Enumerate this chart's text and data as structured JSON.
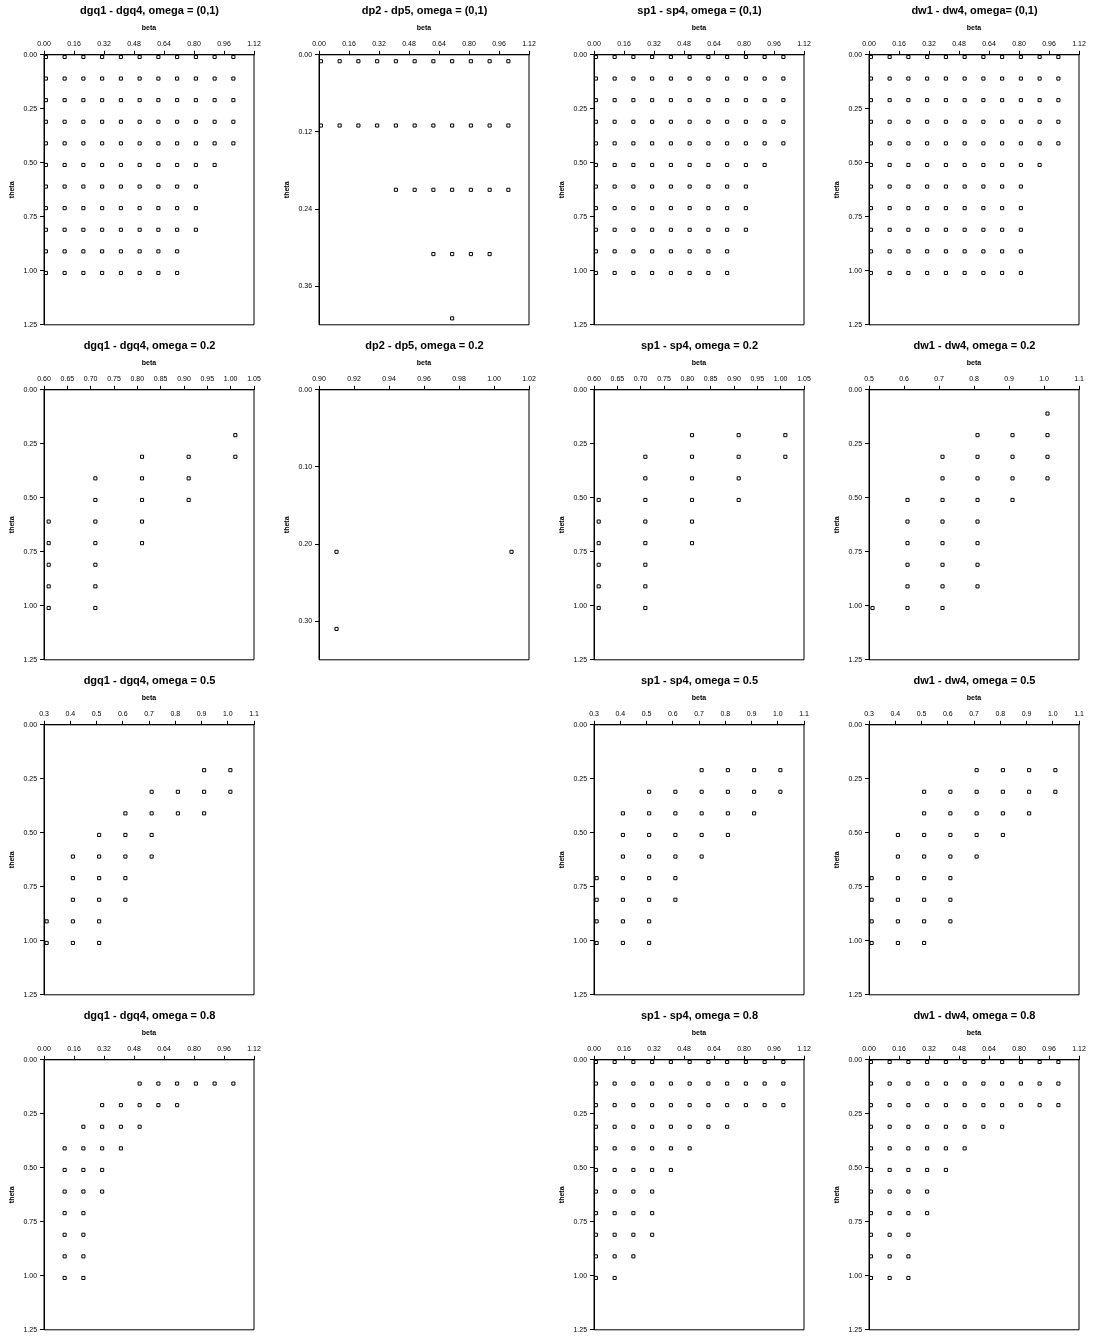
{
  "chart_data": [
    {
      "type": "scatter",
      "title": "dw1 - dw4, omega= (0,1)",
      "xlabel": "beta",
      "ylabel": "theta",
      "ylim": [
        1.25,
        0
      ],
      "yticks": [
        {
          "value": 0,
          "label": "0.00"
        },
        0.25,
        {
          "value": 0.5,
          "label": "0.50"
        },
        0.75,
        {
          "value": 1,
          "label": "1.00"
        },
        1.25
      ],
      "xlim": [
        0,
        1.12
      ],
      "xticks": [
        {
          "value": 0,
          "label": "0.00"
        },
        0.16,
        0.32,
        0.48,
        0.64,
        {
          "value": 0.8,
          "label": "0.80"
        },
        0.96,
        1.12
      ],
      "marker": "square",
      "series": [
        {
          "color": "#000000",
          "values": [
            0.01,
            0.01,
            0.01,
            0.01,
            0.01,
            0.01,
            0.01,
            0.01,
            0.01,
            0.01,
            0.01,
            0.11,
            0.11,
            0.11,
            0.11,
            0.11,
            0.11,
            0.11,
            0.11,
            0.11,
            0.11,
            0.11,
            0.21,
            0.21,
            0.21,
            0.21,
            0.21,
            0.21,
            0.21,
            0.21,
            0.21,
            0.21,
            0.21,
            0.31,
            0.31,
            0.31,
            0.31,
            0.31,
            0.31,
            0.31,
            0.31,
            0.31,
            0.31,
            0.31,
            0.41,
            0.41,
            0.41,
            0.41,
            0.41,
            0.41,
            0.41,
            0.41,
            0.41,
            0.41,
            0.41,
            0.51,
            0.51,
            0.51,
            0.51,
            0.51,
            0.51,
            0.51,
            0.51,
            0.51,
            0.51,
            0.61,
            0.61,
            0.61,
            0.61,
            0.61,
            0.61,
            0.61,
            0.61,
            0.61,
            0.71,
            0.71,
            0.71,
            0.71,
            0.71,
            0.71,
            0.71,
            0.71,
            0.71,
            0.81,
            0.81,
            0.81,
            0.81,
            0.81,
            0.81,
            0.81,
            0.81,
            0.81,
            0.91,
            0.91,
            0.91,
            0.91,
            0.91,
            0.91,
            0.91,
            0.91,
            0.91,
            1.01,
            1.01,
            1.01,
            1.01,
            1.01,
            1.01,
            1.01,
            1.01,
            1.01
          ],
          "x": [
            0.01,
            0.11,
            0.21,
            0.31,
            0.41,
            0.51,
            0.61,
            0.71,
            0.81,
            0.91,
            1.01,
            0.01,
            0.11,
            0.21,
            0.31,
            0.41,
            0.51,
            0.61,
            0.71,
            0.81,
            0.91,
            1.01,
            0.01,
            0.11,
            0.21,
            0.31,
            0.41,
            0.51,
            0.61,
            0.71,
            0.81,
            0.91,
            1.01,
            0.01,
            0.11,
            0.21,
            0.31,
            0.41,
            0.51,
            0.61,
            0.71,
            0.81,
            0.91,
            1.01,
            0.01,
            0.11,
            0.21,
            0.31,
            0.41,
            0.51,
            0.61,
            0.71,
            0.81,
            0.91,
            1.01,
            0.01,
            0.11,
            0.21,
            0.31,
            0.41,
            0.51,
            0.61,
            0.71,
            0.81,
            0.91,
            0.01,
            0.11,
            0.21,
            0.31,
            0.41,
            0.51,
            0.61,
            0.71,
            0.81,
            0.01,
            0.11,
            0.21,
            0.31,
            0.41,
            0.51,
            0.61,
            0.71,
            0.81,
            0.01,
            0.11,
            0.21,
            0.31,
            0.41,
            0.51,
            0.61,
            0.71,
            0.81,
            0.01,
            0.11,
            0.21,
            0.31,
            0.41,
            0.51,
            0.61,
            0.71,
            0.81,
            0.01,
            0.11,
            0.21,
            0.31,
            0.41,
            0.51,
            0.61,
            0.71,
            0.81
          ]
        }
      ]
    },
    {
      "type": "scatter",
      "title": "dw1 - dw4, omega = 0.2",
      "xlabel": "beta",
      "ylabel": "theta",
      "ylim": [
        1.25,
        0
      ],
      "yticks": [
        {
          "value": 0,
          "label": "0.00"
        },
        0.25,
        {
          "value": 0.5,
          "label": "0.50"
        },
        0.75,
        {
          "value": 1,
          "label": "1.00"
        },
        1.25
      ],
      "xlim": [
        0.5,
        1.1
      ],
      "xticks": [
        0.5,
        0.6,
        0.7,
        0.8,
        0.9,
        {
          "value": 1,
          "label": "1.0"
        },
        1.1
      ],
      "marker": "square",
      "series": [
        {
          "color": "#000000",
          "values": [
            0.11,
            0.21,
            0.21,
            0.21,
            0.31,
            0.31,
            0.31,
            0.31,
            0.41,
            0.41,
            0.41,
            0.41,
            0.51,
            0.51,
            0.51,
            0.51,
            0.61,
            0.61,
            0.61,
            0.71,
            0.71,
            0.71,
            0.81,
            0.81,
            0.81,
            0.91,
            0.91,
            0.91,
            1.01,
            1.01,
            1.01
          ],
          "x": [
            1.01,
            0.81,
            0.91,
            1.01,
            0.71,
            0.81,
            0.91,
            1.01,
            0.71,
            0.81,
            0.91,
            1.01,
            0.61,
            0.71,
            0.81,
            0.91,
            0.61,
            0.71,
            0.81,
            0.61,
            0.71,
            0.81,
            0.61,
            0.71,
            0.81,
            0.61,
            0.71,
            0.81,
            0.51,
            0.61,
            0.71
          ]
        }
      ]
    },
    {
      "type": "scatter",
      "title": "dw1 - dw4, omega = 0.5",
      "xlabel": "beta",
      "ylabel": "theta",
      "ylim": [
        1.25,
        0
      ],
      "yticks": [
        {
          "value": 0,
          "label": "0.00"
        },
        0.25,
        {
          "value": 0.5,
          "label": "0.50"
        },
        0.75,
        {
          "value": 1,
          "label": "1.00"
        },
        1.25
      ],
      "xlim": [
        0.3,
        1.1
      ],
      "xticks": [
        0.3,
        0.4,
        0.5,
        0.6,
        0.7,
        0.8,
        0.9,
        {
          "value": 1,
          "label": "1.0"
        },
        1.1
      ],
      "marker": "square",
      "series": [
        {
          "color": "#000000",
          "values": [
            0.21,
            0.21,
            0.21,
            0.21,
            0.31,
            0.31,
            0.31,
            0.31,
            0.31,
            0.31,
            0.41,
            0.41,
            0.41,
            0.41,
            0.41,
            0.51,
            0.51,
            0.51,
            0.51,
            0.51,
            0.61,
            0.61,
            0.61,
            0.61,
            0.71,
            0.71,
            0.71,
            0.71,
            0.81,
            0.81,
            0.81,
            0.81,
            0.91,
            0.91,
            0.91,
            0.91,
            1.01,
            1.01,
            1.01
          ],
          "x": [
            0.71,
            0.81,
            0.91,
            1.01,
            0.51,
            0.61,
            0.71,
            0.81,
            0.91,
            1.01,
            0.51,
            0.61,
            0.71,
            0.81,
            0.91,
            0.41,
            0.51,
            0.61,
            0.71,
            0.81,
            0.41,
            0.51,
            0.61,
            0.71,
            0.31,
            0.41,
            0.51,
            0.61,
            0.31,
            0.41,
            0.51,
            0.61,
            0.31,
            0.41,
            0.51,
            0.61,
            0.31,
            0.41,
            0.51
          ]
        }
      ]
    },
    {
      "type": "scatter",
      "title": "dw1 - dw4, omega = 0.8",
      "xlabel": "beta",
      "ylabel": "theta",
      "ylim": [
        1.25,
        0
      ],
      "yticks": [
        {
          "value": 0,
          "label": "0.00"
        },
        0.25,
        {
          "value": 0.5,
          "label": "0.50"
        },
        0.75,
        {
          "value": 1,
          "label": "1.00"
        },
        1.25
      ],
      "xlim": [
        0,
        1.12
      ],
      "xticks": [
        {
          "value": 0,
          "label": "0.00"
        },
        0.16,
        0.32,
        0.48,
        0.64,
        {
          "value": 0.8,
          "label": "0.80"
        },
        0.96,
        1.12
      ],
      "marker": "square",
      "series": [
        {
          "color": "#000000",
          "values": [
            0.01,
            0.01,
            0.01,
            0.01,
            0.01,
            0.01,
            0.01,
            0.01,
            0.01,
            0.01,
            0.01,
            0.11,
            0.11,
            0.11,
            0.11,
            0.11,
            0.11,
            0.11,
            0.11,
            0.11,
            0.11,
            0.11,
            0.21,
            0.21,
            0.21,
            0.21,
            0.21,
            0.21,
            0.21,
            0.21,
            0.21,
            0.21,
            0.21,
            0.31,
            0.31,
            0.31,
            0.31,
            0.31,
            0.31,
            0.31,
            0.31,
            0.41,
            0.41,
            0.41,
            0.41,
            0.41,
            0.41,
            0.51,
            0.51,
            0.51,
            0.51,
            0.51,
            0.61,
            0.61,
            0.61,
            0.61,
            0.71,
            0.71,
            0.71,
            0.71,
            0.81,
            0.81,
            0.81,
            0.91,
            0.91,
            0.91,
            1.01,
            1.01,
            1.01
          ],
          "x": [
            0.01,
            0.11,
            0.21,
            0.31,
            0.41,
            0.51,
            0.61,
            0.71,
            0.81,
            0.91,
            1.01,
            0.01,
            0.11,
            0.21,
            0.31,
            0.41,
            0.51,
            0.61,
            0.71,
            0.81,
            0.91,
            1.01,
            0.01,
            0.11,
            0.21,
            0.31,
            0.41,
            0.51,
            0.61,
            0.71,
            0.81,
            0.91,
            1.01,
            0.01,
            0.11,
            0.21,
            0.31,
            0.41,
            0.51,
            0.61,
            0.71,
            0.01,
            0.11,
            0.21,
            0.31,
            0.41,
            0.51,
            0.01,
            0.11,
            0.21,
            0.31,
            0.41,
            0.01,
            0.11,
            0.21,
            0.31,
            0.01,
            0.11,
            0.21,
            0.31,
            0.01,
            0.11,
            0.21,
            0.01,
            0.11,
            0.21,
            0.01,
            0.11,
            0.21
          ]
        }
      ]
    },
    {
      "type": "scatter",
      "title": "sp1 - sp4, omega = (0,1)",
      "xlabel": "beta",
      "ylabel": "theta",
      "ylim": [
        1.25,
        0
      ],
      "yticks": [
        {
          "value": 0,
          "label": "0.00"
        },
        0.25,
        {
          "value": 0.5,
          "label": "0.50"
        },
        0.75,
        {
          "value": 1,
          "label": "1.00"
        },
        1.25
      ],
      "xlim": [
        0,
        1.12
      ],
      "xticks": [
        {
          "value": 0,
          "label": "0.00"
        },
        0.16,
        0.32,
        0.48,
        0.64,
        {
          "value": 0.8,
          "label": "0.80"
        },
        0.96,
        1.12
      ],
      "marker": "square",
      "series": [
        {
          "color": "#000000",
          "values": [
            0.01,
            0.01,
            0.01,
            0.01,
            0.01,
            0.01,
            0.01,
            0.01,
            0.01,
            0.01,
            0.01,
            0.11,
            0.11,
            0.11,
            0.11,
            0.11,
            0.11,
            0.11,
            0.11,
            0.11,
            0.11,
            0.11,
            0.21,
            0.21,
            0.21,
            0.21,
            0.21,
            0.21,
            0.21,
            0.21,
            0.21,
            0.21,
            0.21,
            0.31,
            0.31,
            0.31,
            0.31,
            0.31,
            0.31,
            0.31,
            0.31,
            0.31,
            0.31,
            0.31,
            0.41,
            0.41,
            0.41,
            0.41,
            0.41,
            0.41,
            0.41,
            0.41,
            0.41,
            0.41,
            0.41,
            0.51,
            0.51,
            0.51,
            0.51,
            0.51,
            0.51,
            0.51,
            0.51,
            0.51,
            0.51,
            0.61,
            0.61,
            0.61,
            0.61,
            0.61,
            0.61,
            0.61,
            0.61,
            0.61,
            0.71,
            0.71,
            0.71,
            0.71,
            0.71,
            0.71,
            0.71,
            0.71,
            0.71,
            0.81,
            0.81,
            0.81,
            0.81,
            0.81,
            0.81,
            0.81,
            0.81,
            0.81,
            0.91,
            0.91,
            0.91,
            0.91,
            0.91,
            0.91,
            0.91,
            0.91,
            1.01,
            1.01,
            1.01,
            1.01,
            1.01,
            1.01,
            1.01,
            1.01
          ],
          "x": [
            0.01,
            0.11,
            0.21,
            0.31,
            0.41,
            0.51,
            0.61,
            0.71,
            0.81,
            0.91,
            1.01,
            0.01,
            0.11,
            0.21,
            0.31,
            0.41,
            0.51,
            0.61,
            0.71,
            0.81,
            0.91,
            1.01,
            0.01,
            0.11,
            0.21,
            0.31,
            0.41,
            0.51,
            0.61,
            0.71,
            0.81,
            0.91,
            1.01,
            0.01,
            0.11,
            0.21,
            0.31,
            0.41,
            0.51,
            0.61,
            0.71,
            0.81,
            0.91,
            1.01,
            0.01,
            0.11,
            0.21,
            0.31,
            0.41,
            0.51,
            0.61,
            0.71,
            0.81,
            0.91,
            1.01,
            0.01,
            0.11,
            0.21,
            0.31,
            0.41,
            0.51,
            0.61,
            0.71,
            0.81,
            0.91,
            0.01,
            0.11,
            0.21,
            0.31,
            0.41,
            0.51,
            0.61,
            0.71,
            0.81,
            0.01,
            0.11,
            0.21,
            0.31,
            0.41,
            0.51,
            0.61,
            0.71,
            0.81,
            0.01,
            0.11,
            0.21,
            0.31,
            0.41,
            0.51,
            0.61,
            0.71,
            0.81,
            0.01,
            0.11,
            0.21,
            0.31,
            0.41,
            0.51,
            0.61,
            0.71,
            0.01,
            0.11,
            0.21,
            0.31,
            0.41,
            0.51,
            0.61,
            0.71
          ]
        }
      ]
    },
    {
      "type": "scatter",
      "title": "sp1 - sp4, omega = 0.2",
      "xlabel": "beta",
      "ylabel": "theta",
      "ylim": [
        1.25,
        0
      ],
      "yticks": [
        {
          "value": 0,
          "label": "0.00"
        },
        0.25,
        {
          "value": 0.5,
          "label": "0.50"
        },
        0.75,
        {
          "value": 1,
          "label": "1.00"
        },
        1.25
      ],
      "xlim": [
        0.6,
        1.05
      ],
      "xticks": [
        {
          "value": 0.6,
          "label": "0.60"
        },
        0.65,
        {
          "value": 0.7,
          "label": "0.70"
        },
        0.75,
        {
          "value": 0.8,
          "label": "0.80"
        },
        0.85,
        {
          "value": 0.9,
          "label": "0.90"
        },
        0.95,
        {
          "value": 1,
          "label": "1.00"
        },
        1.05
      ],
      "marker": "square",
      "series": [
        {
          "color": "#000000",
          "values": [
            0.21,
            0.21,
            0.21,
            0.31,
            0.31,
            0.31,
            0.31,
            0.41,
            0.41,
            0.41,
            0.51,
            0.51,
            0.51,
            0.51,
            0.61,
            0.61,
            0.61,
            0.71,
            0.71,
            0.71,
            0.81,
            0.81,
            0.91,
            0.91,
            1.01,
            1.01
          ],
          "x": [
            0.81,
            0.91,
            1.01,
            0.71,
            0.81,
            0.91,
            1.01,
            0.71,
            0.81,
            0.91,
            0.61,
            0.71,
            0.81,
            0.91,
            0.61,
            0.71,
            0.81,
            0.61,
            0.71,
            0.81,
            0.61,
            0.71,
            0.61,
            0.71,
            0.61,
            0.71
          ]
        }
      ]
    },
    {
      "type": "scatter",
      "title": "sp1 - sp4, omega = 0.5",
      "xlabel": "beta",
      "ylabel": "theta",
      "ylim": [
        1.25,
        0
      ],
      "yticks": [
        {
          "value": 0,
          "label": "0.00"
        },
        0.25,
        {
          "value": 0.5,
          "label": "0.50"
        },
        0.75,
        {
          "value": 1,
          "label": "1.00"
        },
        1.25
      ],
      "xlim": [
        0.3,
        1.1
      ],
      "xticks": [
        0.3,
        0.4,
        0.5,
        0.6,
        0.7,
        0.8,
        0.9,
        {
          "value": 1,
          "label": "1.0"
        },
        1.1
      ],
      "marker": "square",
      "series": [
        {
          "color": "#000000",
          "values": [
            0.21,
            0.21,
            0.21,
            0.21,
            0.31,
            0.31,
            0.31,
            0.31,
            0.31,
            0.31,
            0.41,
            0.41,
            0.41,
            0.41,
            0.41,
            0.41,
            0.51,
            0.51,
            0.51,
            0.51,
            0.51,
            0.61,
            0.61,
            0.61,
            0.61,
            0.71,
            0.71,
            0.71,
            0.71,
            0.81,
            0.81,
            0.81,
            0.81,
            0.91,
            0.91,
            0.91,
            1.01,
            1.01,
            1.01
          ],
          "x": [
            0.71,
            0.81,
            0.91,
            1.01,
            0.51,
            0.61,
            0.71,
            0.81,
            0.91,
            1.01,
            0.41,
            0.51,
            0.61,
            0.71,
            0.81,
            0.91,
            0.41,
            0.51,
            0.61,
            0.71,
            0.81,
            0.41,
            0.51,
            0.61,
            0.71,
            0.31,
            0.41,
            0.51,
            0.61,
            0.31,
            0.41,
            0.51,
            0.61,
            0.31,
            0.41,
            0.51,
            0.31,
            0.41,
            0.51
          ]
        }
      ]
    },
    {
      "type": "scatter",
      "title": "sp1 - sp4, omega = 0.8",
      "xlabel": "beta",
      "ylabel": "theta",
      "ylim": [
        1.25,
        0
      ],
      "yticks": [
        {
          "value": 0,
          "label": "0.00"
        },
        0.25,
        {
          "value": 0.5,
          "label": "0.50"
        },
        0.75,
        {
          "value": 1,
          "label": "1.00"
        },
        1.25
      ],
      "xlim": [
        0,
        1.12
      ],
      "xticks": [
        {
          "value": 0,
          "label": "0.00"
        },
        0.16,
        0.32,
        0.48,
        0.64,
        {
          "value": 0.8,
          "label": "0.80"
        },
        0.96,
        1.12
      ],
      "marker": "square",
      "series": [
        {
          "color": "#000000",
          "values": [
            0.01,
            0.01,
            0.01,
            0.01,
            0.01,
            0.01,
            0.01,
            0.01,
            0.01,
            0.01,
            0.01,
            0.11,
            0.11,
            0.11,
            0.11,
            0.11,
            0.11,
            0.11,
            0.11,
            0.11,
            0.11,
            0.11,
            0.21,
            0.21,
            0.21,
            0.21,
            0.21,
            0.21,
            0.21,
            0.21,
            0.21,
            0.21,
            0.21,
            0.31,
            0.31,
            0.31,
            0.31,
            0.31,
            0.31,
            0.31,
            0.31,
            0.41,
            0.41,
            0.41,
            0.41,
            0.41,
            0.41,
            0.51,
            0.51,
            0.51,
            0.51,
            0.51,
            0.61,
            0.61,
            0.61,
            0.61,
            0.71,
            0.71,
            0.71,
            0.71,
            0.81,
            0.81,
            0.81,
            0.81,
            0.91,
            0.91,
            0.91,
            1.01,
            1.01
          ],
          "x": [
            0.01,
            0.11,
            0.21,
            0.31,
            0.41,
            0.51,
            0.61,
            0.71,
            0.81,
            0.91,
            1.01,
            0.01,
            0.11,
            0.21,
            0.31,
            0.41,
            0.51,
            0.61,
            0.71,
            0.81,
            0.91,
            1.01,
            0.01,
            0.11,
            0.21,
            0.31,
            0.41,
            0.51,
            0.61,
            0.71,
            0.81,
            0.91,
            1.01,
            0.01,
            0.11,
            0.21,
            0.31,
            0.41,
            0.51,
            0.61,
            0.71,
            0.01,
            0.11,
            0.21,
            0.31,
            0.41,
            0.51,
            0.01,
            0.11,
            0.21,
            0.31,
            0.41,
            0.01,
            0.11,
            0.21,
            0.31,
            0.01,
            0.11,
            0.21,
            0.31,
            0.01,
            0.11,
            0.21,
            0.31,
            0.01,
            0.11,
            0.21,
            0.01,
            0.11
          ]
        }
      ]
    },
    {
      "type": "scatter",
      "title": "dp2 - dp5, omega = (0,1)",
      "xlabel": "beta",
      "ylabel": "theta",
      "ylim": [
        0.42,
        0
      ],
      "yticks": [
        {
          "value": 0,
          "label": "0.00"
        },
        0.12,
        0.24,
        0.36
      ],
      "xlim": [
        0,
        1.12
      ],
      "xticks": [
        {
          "value": 0,
          "label": "0.00"
        },
        0.16,
        0.32,
        0.48,
        0.64,
        {
          "value": 0.8,
          "label": "0.80"
        },
        0.96,
        1.12
      ],
      "marker": "square",
      "series": [
        {
          "color": "#000000",
          "values": [
            0.01,
            0.01,
            0.01,
            0.01,
            0.01,
            0.01,
            0.01,
            0.01,
            0.01,
            0.01,
            0.01,
            0.11,
            0.11,
            0.11,
            0.11,
            0.11,
            0.11,
            0.11,
            0.11,
            0.11,
            0.11,
            0.11,
            0.21,
            0.21,
            0.21,
            0.21,
            0.21,
            0.21,
            0.21,
            0.31,
            0.31,
            0.31,
            0.31,
            0.41
          ],
          "x": [
            0.01,
            0.11,
            0.21,
            0.31,
            0.41,
            0.51,
            0.61,
            0.71,
            0.81,
            0.91,
            1.01,
            0.01,
            0.11,
            0.21,
            0.31,
            0.41,
            0.51,
            0.61,
            0.71,
            0.81,
            0.91,
            1.01,
            0.41,
            0.51,
            0.61,
            0.71,
            0.81,
            0.91,
            1.01,
            0.61,
            0.71,
            0.81,
            0.91,
            0.71
          ]
        }
      ]
    },
    {
      "type": "scatter",
      "title": "dp2 - dp5, omega = 0.2",
      "xlabel": "beta",
      "ylabel": "theta",
      "ylim": [
        0.35,
        0
      ],
      "yticks": [
        {
          "value": 0,
          "label": "0.00"
        },
        {
          "value": 0.1,
          "label": "0.10"
        },
        {
          "value": 0.2,
          "label": "0.20"
        },
        {
          "value": 0.3,
          "label": "0.30"
        }
      ],
      "xlim": [
        0.9,
        1.02
      ],
      "xticks": [
        {
          "value": 0.9,
          "label": "0.90"
        },
        0.92,
        0.94,
        0.96,
        0.98,
        {
          "value": 1,
          "label": "1.00"
        },
        1.02
      ],
      "marker": "square",
      "series": [
        {
          "color": "#000000",
          "values": [
            0.21,
            0.21,
            0.31
          ],
          "x": [
            0.91,
            1.01,
            0.91
          ]
        }
      ]
    },
    {
      "type": "scatter",
      "title": "dgq1 - dgq4, omega = (0,1)",
      "xlabel": "beta",
      "ylabel": "theta",
      "ylim": [
        1.25,
        0
      ],
      "yticks": [
        {
          "value": 0,
          "label": "0.00"
        },
        0.25,
        {
          "value": 0.5,
          "label": "0.50"
        },
        0.75,
        {
          "value": 1,
          "label": "1.00"
        },
        1.25
      ],
      "xlim": [
        0,
        1.12
      ],
      "xticks": [
        {
          "value": 0,
          "label": "0.00"
        },
        0.16,
        0.32,
        0.48,
        0.64,
        {
          "value": 0.8,
          "label": "0.80"
        },
        0.96,
        1.12
      ],
      "marker": "square",
      "series": [
        {
          "color": "#000000",
          "values": [
            0.01,
            0.01,
            0.01,
            0.01,
            0.01,
            0.01,
            0.01,
            0.01,
            0.01,
            0.01,
            0.01,
            0.11,
            0.11,
            0.11,
            0.11,
            0.11,
            0.11,
            0.11,
            0.11,
            0.11,
            0.11,
            0.11,
            0.21,
            0.21,
            0.21,
            0.21,
            0.21,
            0.21,
            0.21,
            0.21,
            0.21,
            0.21,
            0.21,
            0.31,
            0.31,
            0.31,
            0.31,
            0.31,
            0.31,
            0.31,
            0.31,
            0.31,
            0.31,
            0.31,
            0.41,
            0.41,
            0.41,
            0.41,
            0.41,
            0.41,
            0.41,
            0.41,
            0.41,
            0.41,
            0.41,
            0.51,
            0.51,
            0.51,
            0.51,
            0.51,
            0.51,
            0.51,
            0.51,
            0.51,
            0.51,
            0.61,
            0.61,
            0.61,
            0.61,
            0.61,
            0.61,
            0.61,
            0.61,
            0.61,
            0.71,
            0.71,
            0.71,
            0.71,
            0.71,
            0.71,
            0.71,
            0.71,
            0.71,
            0.81,
            0.81,
            0.81,
            0.81,
            0.81,
            0.81,
            0.81,
            0.81,
            0.81,
            0.91,
            0.91,
            0.91,
            0.91,
            0.91,
            0.91,
            0.91,
            0.91,
            1.01,
            1.01,
            1.01,
            1.01,
            1.01,
            1.01,
            1.01,
            1.01
          ],
          "x": [
            0.01,
            0.11,
            0.21,
            0.31,
            0.41,
            0.51,
            0.61,
            0.71,
            0.81,
            0.91,
            1.01,
            0.01,
            0.11,
            0.21,
            0.31,
            0.41,
            0.51,
            0.61,
            0.71,
            0.81,
            0.91,
            1.01,
            0.01,
            0.11,
            0.21,
            0.31,
            0.41,
            0.51,
            0.61,
            0.71,
            0.81,
            0.91,
            1.01,
            0.01,
            0.11,
            0.21,
            0.31,
            0.41,
            0.51,
            0.61,
            0.71,
            0.81,
            0.91,
            1.01,
            0.01,
            0.11,
            0.21,
            0.31,
            0.41,
            0.51,
            0.61,
            0.71,
            0.81,
            0.91,
            1.01,
            0.01,
            0.11,
            0.21,
            0.31,
            0.41,
            0.51,
            0.61,
            0.71,
            0.81,
            0.91,
            0.01,
            0.11,
            0.21,
            0.31,
            0.41,
            0.51,
            0.61,
            0.71,
            0.81,
            0.01,
            0.11,
            0.21,
            0.31,
            0.41,
            0.51,
            0.61,
            0.71,
            0.81,
            0.01,
            0.11,
            0.21,
            0.31,
            0.41,
            0.51,
            0.61,
            0.71,
            0.81,
            0.01,
            0.11,
            0.21,
            0.31,
            0.41,
            0.51,
            0.61,
            0.71,
            0.01,
            0.11,
            0.21,
            0.31,
            0.41,
            0.51,
            0.61,
            0.71
          ]
        }
      ]
    },
    {
      "type": "scatter",
      "title": "dgq1 - dgq4, omega = 0.2",
      "xlabel": "beta",
      "ylabel": "theta",
      "ylim": [
        1.25,
        0
      ],
      "yticks": [
        {
          "value": 0,
          "label": "0.00"
        },
        0.25,
        {
          "value": 0.5,
          "label": "0.50"
        },
        0.75,
        {
          "value": 1,
          "label": "1.00"
        },
        1.25
      ],
      "xlim": [
        0.6,
        1.05
      ],
      "xticks": [
        {
          "value": 0.6,
          "label": "0.60"
        },
        0.65,
        {
          "value": 0.7,
          "label": "0.70"
        },
        0.75,
        {
          "value": 0.8,
          "label": "0.80"
        },
        0.85,
        {
          "value": 0.9,
          "label": "0.90"
        },
        0.95,
        {
          "value": 1,
          "label": "1.00"
        },
        1.05
      ],
      "marker": "square",
      "series": [
        {
          "color": "#000000",
          "values": [
            0.21,
            0.31,
            0.31,
            0.31,
            0.41,
            0.41,
            0.41,
            0.51,
            0.51,
            0.51,
            0.61,
            0.61,
            0.61,
            0.71,
            0.71,
            0.71,
            0.81,
            0.81,
            0.91,
            0.91,
            1.01,
            1.01
          ],
          "x": [
            1.01,
            0.81,
            0.91,
            1.01,
            0.71,
            0.81,
            0.91,
            0.71,
            0.81,
            0.91,
            0.61,
            0.71,
            0.81,
            0.61,
            0.71,
            0.81,
            0.61,
            0.71,
            0.61,
            0.71,
            0.61,
            0.71
          ]
        }
      ]
    },
    {
      "type": "scatter",
      "title": "dgq1 - dgq4, omega = 0.5",
      "xlabel": "beta",
      "ylabel": "theta",
      "ylim": [
        1.25,
        0
      ],
      "yticks": [
        {
          "value": 0,
          "label": "0.00"
        },
        0.25,
        {
          "value": 0.5,
          "label": "0.50"
        },
        0.75,
        {
          "value": 1,
          "label": "1.00"
        },
        1.25
      ],
      "xlim": [
        0.3,
        1.1
      ],
      "xticks": [
        0.3,
        0.4,
        0.5,
        0.6,
        0.7,
        0.8,
        0.9,
        {
          "value": 1,
          "label": "1.0"
        },
        1.1
      ],
      "marker": "square",
      "series": [
        {
          "color": "#000000",
          "values": [
            0.21,
            0.21,
            0.31,
            0.31,
            0.31,
            0.31,
            0.41,
            0.41,
            0.41,
            0.41,
            0.51,
            0.51,
            0.51,
            0.61,
            0.61,
            0.61,
            0.61,
            0.71,
            0.71,
            0.71,
            0.81,
            0.81,
            0.81,
            0.91,
            0.91,
            0.91,
            1.01,
            1.01,
            1.01
          ],
          "x": [
            0.91,
            1.01,
            0.71,
            0.81,
            0.91,
            1.01,
            0.61,
            0.71,
            0.81,
            0.91,
            0.51,
            0.61,
            0.71,
            0.41,
            0.51,
            0.61,
            0.71,
            0.41,
            0.51,
            0.61,
            0.41,
            0.51,
            0.61,
            0.31,
            0.41,
            0.51,
            0.31,
            0.41,
            0.51
          ]
        }
      ]
    },
    {
      "type": "scatter",
      "title": "dgq1 - dgq4, omega = 0.8",
      "xlabel": "beta",
      "ylabel": "theta",
      "ylim": [
        1.25,
        0
      ],
      "yticks": [
        {
          "value": 0,
          "label": "0.00"
        },
        0.25,
        {
          "value": 0.5,
          "label": "0.50"
        },
        0.75,
        {
          "value": 1,
          "label": "1.00"
        },
        1.25
      ],
      "xlim": [
        0,
        1.12
      ],
      "xticks": [
        {
          "value": 0,
          "label": "0.00"
        },
        0.16,
        0.32,
        0.48,
        0.64,
        {
          "value": 0.8,
          "label": "0.80"
        },
        0.96,
        1.12
      ],
      "marker": "square",
      "series": [
        {
          "color": "#000000",
          "values": [
            0.11,
            0.11,
            0.11,
            0.11,
            0.11,
            0.11,
            0.21,
            0.21,
            0.21,
            0.21,
            0.21,
            0.31,
            0.31,
            0.31,
            0.31,
            0.41,
            0.41,
            0.41,
            0.41,
            0.51,
            0.51,
            0.51,
            0.61,
            0.61,
            0.61,
            0.71,
            0.71,
            0.81,
            0.81,
            0.91,
            0.91,
            1.01,
            1.01
          ],
          "x": [
            0.51,
            0.61,
            0.71,
            0.81,
            0.91,
            1.01,
            0.31,
            0.41,
            0.51,
            0.61,
            0.71,
            0.21,
            0.31,
            0.41,
            0.51,
            0.11,
            0.21,
            0.31,
            0.41,
            0.11,
            0.21,
            0.31,
            0.11,
            0.21,
            0.31,
            0.11,
            0.21,
            0.11,
            0.21,
            0.11,
            0.21,
            0.11,
            0.21
          ]
        }
      ]
    }
  ]
}
